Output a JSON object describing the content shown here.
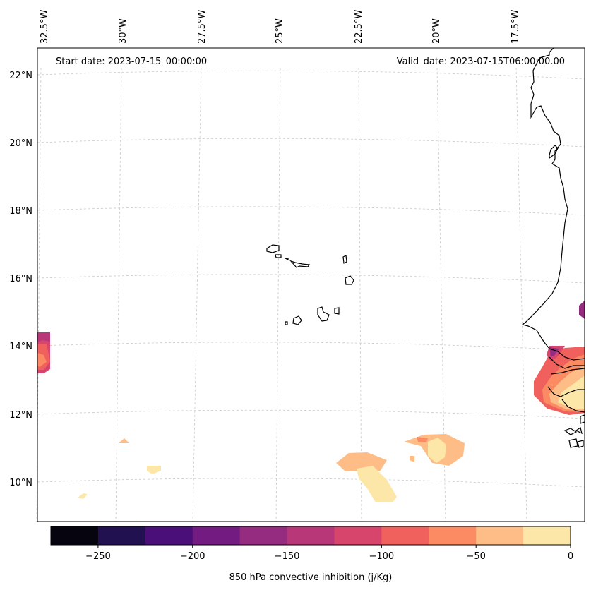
{
  "header": {
    "start_date": "Start date: 2023-07-15_00:00:00",
    "valid_date": "Valid_date: 2023-07-15T06:00:00.00"
  },
  "longitude_labels": [
    "32.5°W",
    "30°W",
    "27.5°W",
    "25°W",
    "22.5°W",
    "20°W",
    "17.5°W"
  ],
  "latitude_labels": [
    "22°N",
    "20°N",
    "18°N",
    "16°N",
    "14°N",
    "12°N",
    "10°N"
  ],
  "colorbar": {
    "title": "850 hPa convective inhibition (j/Kg)",
    "tick_labels": [
      "−250",
      "−200",
      "−150",
      "−100",
      "−50",
      "0"
    ],
    "levels": [
      -275,
      -250,
      -225,
      -200,
      -175,
      -150,
      -125,
      -100,
      -75,
      -50,
      -25,
      0
    ],
    "colors": [
      "#05040f",
      "#221150",
      "#4a0f78",
      "#731b81",
      "#952c80",
      "#b73779",
      "#d8456c",
      "#f0605d",
      "#fc8a62",
      "#febc86",
      "#fde7a8"
    ]
  },
  "map": {
    "extent_lon": [
      -32.7,
      -15.7
    ],
    "extent_lat": [
      9.0,
      22.5
    ],
    "gridlines": "dashed",
    "cin_fields": [
      {
        "name": "west-edge-patch",
        "approx_lon": -32.5,
        "approx_lat": 13.8,
        "min_value": -150
      },
      {
        "name": "senegal-gambia-coast",
        "approx_lon": -16.5,
        "approx_lat": 13.0,
        "min_value": -175
      },
      {
        "name": "offshore-south-patch-1",
        "approx_lon": -22.2,
        "approx_lat": 10.3,
        "min_value": -50
      },
      {
        "name": "offshore-south-patch-2",
        "approx_lon": -20.2,
        "approx_lat": 11.0,
        "min_value": -50
      }
    ]
  }
}
